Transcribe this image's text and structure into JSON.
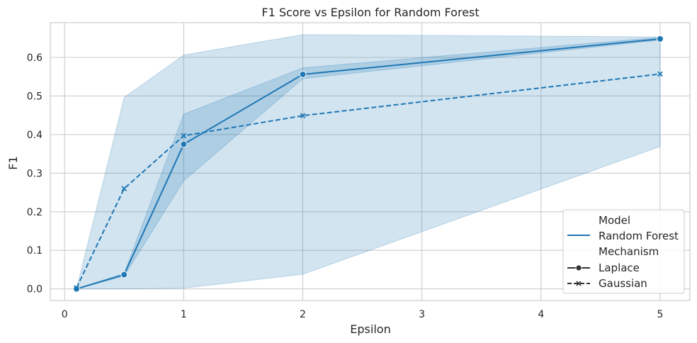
{
  "chart_data": {
    "type": "line",
    "title": "F1 Score vs Epsilon for Random Forest",
    "xlabel": "Epsilon",
    "ylabel": "F1",
    "xlim": [
      -0.12,
      5.25
    ],
    "ylim": [
      -0.03,
      0.69
    ],
    "xticks": [
      0,
      1,
      2,
      3,
      4,
      5
    ],
    "yticks": [
      0.0,
      0.1,
      0.2,
      0.3,
      0.4,
      0.5,
      0.6
    ],
    "grid": true,
    "colors": {
      "series": "#1f77b4",
      "band": "#1f77b4",
      "grid": "#cccccc",
      "spine": "#cccccc"
    },
    "legend": {
      "placement": "bottom-right",
      "model_title": "Model",
      "model_entry": "Random Forest",
      "mechanism_title": "Mechanism"
    },
    "x": [
      0.1,
      0.5,
      1,
      2,
      5
    ],
    "series": [
      {
        "name": "Laplace",
        "marker": "circle",
        "dash": "solid",
        "values": [
          0.0,
          0.037,
          0.375,
          0.556,
          0.648
        ],
        "ci_lower": [
          0.0,
          0.033,
          0.28,
          0.545,
          0.645
        ],
        "ci_upper": [
          0.0,
          0.04,
          0.453,
          0.573,
          0.652
        ]
      },
      {
        "name": "Gaussian",
        "marker": "x",
        "dash": "dashed",
        "values": [
          0.003,
          0.26,
          0.397,
          0.449,
          0.557
        ]
      }
    ],
    "overall_band": {
      "lower": [
        0.0,
        0.0,
        0.002,
        0.038,
        0.369
      ],
      "upper": [
        0.0,
        0.496,
        0.606,
        0.659,
        0.653
      ]
    }
  }
}
